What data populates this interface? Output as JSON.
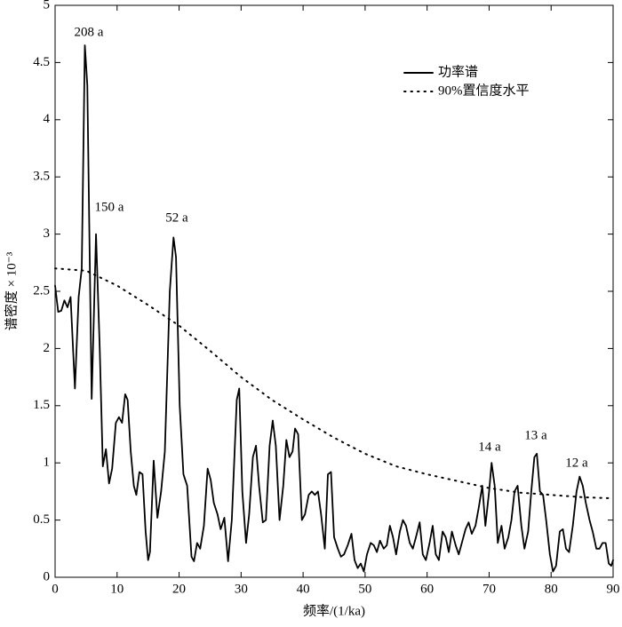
{
  "chart_data": {
    "type": "line",
    "xlabel": "频率/(1/ka)",
    "ylabel": "谱密度 × 10⁻³",
    "xlim": [
      0,
      90
    ],
    "xticks": [
      0,
      10,
      20,
      30,
      40,
      50,
      60,
      70,
      80,
      90
    ],
    "ylim": [
      0,
      5
    ],
    "yticks": [
      0,
      0.5,
      1,
      1.5,
      2,
      2.5,
      3,
      3.5,
      4,
      4.5,
      5
    ],
    "legend": "upper right",
    "annotations": [
      "208 a",
      "150 a",
      "52 a",
      "14 a",
      "13 a",
      "12 a"
    ],
    "series": [
      {
        "name": "功率谱",
        "color": "#000000",
        "style": "solid",
        "x": [
          0,
          0.5,
          1,
          1.5,
          2,
          2.5,
          3.2,
          3.8,
          4.3,
          4.8,
          5.2,
          5.9,
          6.6,
          7.2,
          7.7,
          8.2,
          8.7,
          9.2,
          9.8,
          10.3,
          10.8,
          11.3,
          11.7,
          12.2,
          12.7,
          13.1,
          13.6,
          14.1,
          14.6,
          15,
          15.3,
          15.9,
          16.5,
          17.1,
          17.7,
          18.5,
          19.1,
          19.5,
          20.1,
          20.7,
          21.3,
          22,
          22.4,
          22.9,
          23.4,
          24,
          24.6,
          25.1,
          25.6,
          26.2,
          26.7,
          27.3,
          27.9,
          28.5,
          29.3,
          29.7,
          30.2,
          30.8,
          31.3,
          31.9,
          32.4,
          32.9,
          33.5,
          34,
          34.6,
          35.1,
          35.6,
          36.2,
          36.8,
          37.3,
          37.8,
          38.3,
          38.7,
          39.2,
          39.8,
          40.3,
          40.9,
          41.4,
          41.9,
          42.4,
          42.9,
          43.5,
          44,
          44.5,
          45,
          45.6,
          46.1,
          46.6,
          47.2,
          47.8,
          48.3,
          48.8,
          49.3,
          49.8,
          50.3,
          50.9,
          51.4,
          51.9,
          52.4,
          53,
          53.5,
          54,
          54.5,
          55,
          55.6,
          56.1,
          56.6,
          57.2,
          57.7,
          58.2,
          58.8,
          59.3,
          59.8,
          60.4,
          60.9,
          61.4,
          61.9,
          62.5,
          63,
          63.5,
          64,
          64.6,
          65.1,
          65.6,
          66.2,
          66.7,
          67.2,
          67.8,
          68.3,
          68.9,
          69.4,
          70,
          70.4,
          70.9,
          71.4,
          72,
          72.5,
          73.1,
          73.6,
          74.1,
          74.6,
          75.2,
          75.7,
          76.3,
          76.8,
          77.3,
          77.7,
          78.2,
          78.7,
          79.2,
          79.8,
          80.3,
          80.8,
          81.4,
          81.9,
          82.4,
          82.9,
          83.5,
          84.1,
          84.6,
          85.1,
          85.6,
          86.2,
          86.7,
          87.3,
          87.8,
          88.3,
          88.8,
          89.3,
          89.7,
          90
        ],
        "values": [
          2.55,
          2.32,
          2.33,
          2.42,
          2.36,
          2.45,
          1.65,
          2.45,
          2.7,
          4.65,
          4.3,
          1.56,
          3.0,
          2.0,
          0.97,
          1.12,
          0.82,
          0.95,
          1.35,
          1.4,
          1.35,
          1.6,
          1.55,
          1.1,
          0.8,
          0.72,
          0.92,
          0.9,
          0.4,
          0.15,
          0.22,
          1.02,
          0.52,
          0.75,
          1.1,
          2.5,
          2.97,
          2.8,
          1.5,
          0.9,
          0.8,
          0.18,
          0.14,
          0.3,
          0.25,
          0.45,
          0.95,
          0.85,
          0.65,
          0.55,
          0.42,
          0.52,
          0.14,
          0.5,
          1.55,
          1.65,
          0.75,
          0.3,
          0.55,
          1.05,
          1.15,
          0.8,
          0.48,
          0.5,
          1.15,
          1.37,
          1.15,
          0.5,
          0.8,
          1.2,
          1.05,
          1.1,
          1.3,
          1.25,
          0.5,
          0.55,
          0.72,
          0.75,
          0.72,
          0.75,
          0.55,
          0.25,
          0.9,
          0.92,
          0.35,
          0.25,
          0.18,
          0.2,
          0.28,
          0.38,
          0.15,
          0.08,
          0.12,
          0.05,
          0.2,
          0.3,
          0.28,
          0.22,
          0.32,
          0.25,
          0.28,
          0.45,
          0.35,
          0.2,
          0.4,
          0.5,
          0.45,
          0.3,
          0.25,
          0.35,
          0.48,
          0.2,
          0.15,
          0.3,
          0.45,
          0.2,
          0.15,
          0.4,
          0.35,
          0.22,
          0.4,
          0.28,
          0.2,
          0.3,
          0.42,
          0.48,
          0.38,
          0.45,
          0.6,
          0.8,
          0.45,
          0.75,
          1.0,
          0.8,
          0.3,
          0.45,
          0.25,
          0.35,
          0.5,
          0.75,
          0.8,
          0.45,
          0.25,
          0.4,
          0.75,
          1.05,
          1.08,
          0.75,
          0.72,
          0.5,
          0.2,
          0.05,
          0.1,
          0.4,
          0.42,
          0.25,
          0.22,
          0.45,
          0.75,
          0.88,
          0.8,
          0.65,
          0.5,
          0.4,
          0.25,
          0.25,
          0.3,
          0.3,
          0.12,
          0.1,
          0.15
        ]
      },
      {
        "name": "90%置信度水平",
        "color": "#000000",
        "style": "dotted",
        "x": [
          0,
          5,
          10,
          15,
          20,
          25,
          30,
          35,
          40,
          45,
          50,
          55,
          60,
          65,
          70,
          75,
          80,
          85,
          90
        ],
        "values": [
          2.7,
          2.68,
          2.55,
          2.38,
          2.2,
          1.98,
          1.75,
          1.55,
          1.38,
          1.22,
          1.08,
          0.97,
          0.9,
          0.84,
          0.78,
          0.74,
          0.72,
          0.7,
          0.69
        ]
      }
    ]
  }
}
